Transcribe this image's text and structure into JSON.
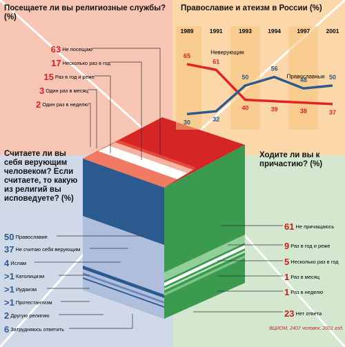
{
  "attendance": {
    "title": "Посещаете ли вы религиозные службы? (%)",
    "items": [
      {
        "value": "63",
        "label": "Не посещаю"
      },
      {
        "value": "17",
        "label": "Несколько раз в год"
      },
      {
        "value": "15",
        "label": "Раз в год и реже"
      },
      {
        "value": "3",
        "label": "Один раз в месяц"
      },
      {
        "value": "2",
        "label": "Один раз в неделю"
      }
    ]
  },
  "religion": {
    "title": "Считаете ли вы себя верующим человеком? Если считаете, то какую из религий вы исповедуете? (%)",
    "items": [
      {
        "value": "50",
        "label": "Православие"
      },
      {
        "value": "37",
        "label": "Не считаю себя верующим"
      },
      {
        "value": "4",
        "label": "Ислам"
      },
      {
        "value": ">1",
        "label": "Католицизм"
      },
      {
        "value": ">1",
        "label": "Иудаизм"
      },
      {
        "value": ">1",
        "label": "Протестантизм"
      },
      {
        "value": "2",
        "label": "Другую религию"
      },
      {
        "value": "6",
        "label": "Затрудняюсь ответить"
      }
    ]
  },
  "communion": {
    "title": "Ходите ли вы к причастию? (%)",
    "items": [
      {
        "value": "61",
        "label": "Не причащаюсь"
      },
      {
        "value": "9",
        "label": "Раз в год и реже"
      },
      {
        "value": "5",
        "label": "Несколько раз в год"
      },
      {
        "value": "1",
        "label": "Раз в месяц"
      },
      {
        "value": "1",
        "label": "Раз в неделю"
      },
      {
        "value": "23",
        "label": "Нет ответа"
      }
    ]
  },
  "chart_data": {
    "type": "line",
    "title": "Православие и атеизм в России (%)",
    "x": [
      "1989",
      "1991",
      "1993",
      "1994",
      "1997",
      "2001"
    ],
    "ylim": [
      20,
      80
    ],
    "series": [
      {
        "name": "Неверующие",
        "values": [
          65,
          61,
          40,
          39,
          38,
          37
        ],
        "color": "#e02424"
      },
      {
        "name": "Православные",
        "values": [
          30,
          32,
          50,
          56,
          48,
          50
        ],
        "color": "#2c5a8e"
      }
    ],
    "grid": false
  },
  "source": "ВЦИОМ, 2407 человек, 2001 год."
}
